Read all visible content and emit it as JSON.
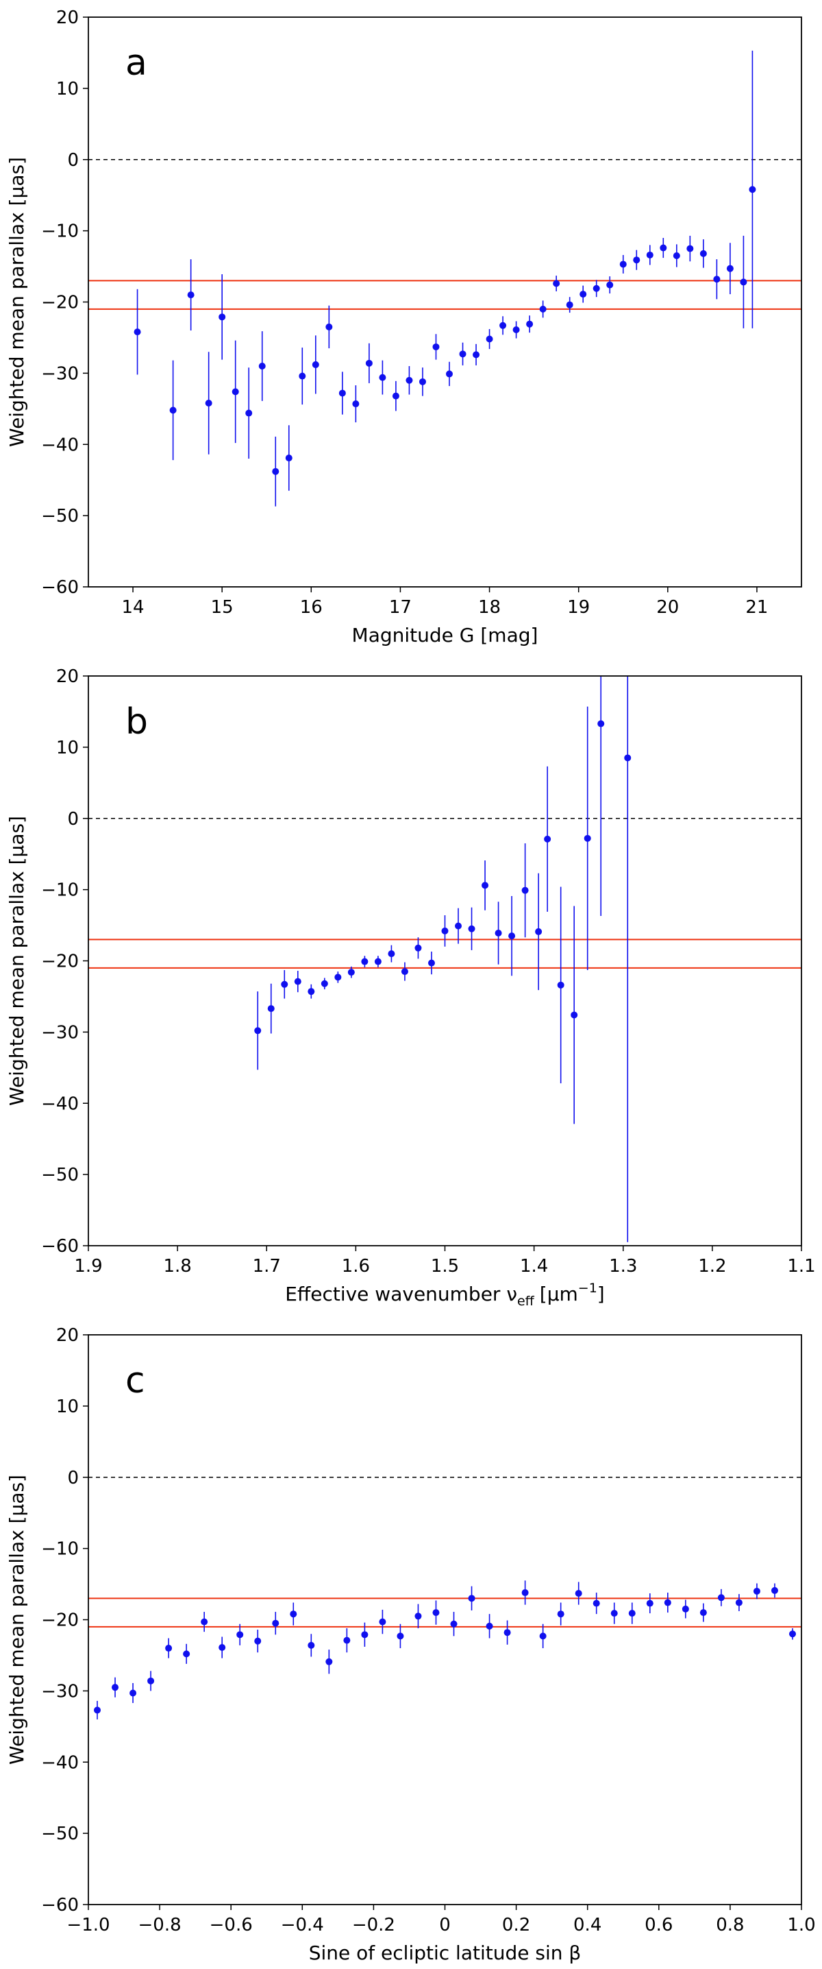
{
  "chart_data": [
    {
      "type": "scatter",
      "panel_label": "a",
      "xlabel": "Magnitude G [mag]",
      "ylabel": "Weighted mean parallax [μas]",
      "xlim": [
        13.5,
        21.5
      ],
      "ylim": [
        -60,
        20
      ],
      "xticks": [
        14,
        15,
        16,
        17,
        18,
        19,
        20,
        21
      ],
      "xtick_labels": [
        "14",
        "15",
        "16",
        "17",
        "18",
        "19",
        "20",
        "21"
      ],
      "yticks": [
        20,
        10,
        0,
        -10,
        -20,
        -30,
        -40,
        -50,
        -60
      ],
      "ytick_labels": [
        "20",
        "10",
        "0",
        "−10",
        "−20",
        "−30",
        "−40",
        "−50",
        "−60"
      ],
      "reference_lines": {
        "zero_dashed": 0,
        "red_lines": [
          -17,
          -21
        ]
      },
      "series": [
        {
          "name": "weighted mean parallax",
          "x": [
            14.05,
            14.45,
            14.65,
            14.85,
            15.0,
            15.15,
            15.3,
            15.45,
            15.6,
            15.75,
            15.9,
            16.05,
            16.2,
            16.35,
            16.5,
            16.65,
            16.8,
            16.95,
            17.1,
            17.25,
            17.4,
            17.55,
            17.7,
            17.85,
            18.0,
            18.15,
            18.3,
            18.45,
            18.6,
            18.75,
            18.9,
            19.05,
            19.2,
            19.35,
            19.5,
            19.65,
            19.8,
            19.95,
            20.1,
            20.25,
            20.4,
            20.55,
            20.7,
            20.85,
            20.95
          ],
          "y": [
            -24.2,
            -35.2,
            -19.0,
            -34.2,
            -22.1,
            -32.6,
            -35.6,
            -29.0,
            -43.8,
            -41.9,
            -30.4,
            -28.8,
            -23.5,
            -32.8,
            -34.3,
            -28.6,
            -30.6,
            -33.2,
            -31.0,
            -31.2,
            -26.3,
            -30.1,
            -27.3,
            -27.4,
            -25.2,
            -23.3,
            -23.9,
            -23.1,
            -21.0,
            -17.4,
            -20.4,
            -18.9,
            -18.1,
            -17.6,
            -14.7,
            -14.1,
            -13.4,
            -12.4,
            -13.5,
            -12.5,
            -13.2,
            -16.8,
            -15.3,
            -17.2,
            -4.2
          ],
          "err": [
            6.0,
            7.0,
            5.0,
            7.2,
            6.0,
            7.2,
            6.4,
            4.9,
            4.9,
            4.6,
            4.0,
            4.1,
            3.0,
            3.0,
            2.6,
            2.8,
            2.4,
            2.1,
            2.0,
            2.0,
            1.8,
            1.7,
            1.6,
            1.5,
            1.4,
            1.3,
            1.2,
            1.2,
            1.2,
            1.1,
            1.1,
            1.2,
            1.2,
            1.2,
            1.3,
            1.4,
            1.4,
            1.4,
            1.6,
            1.8,
            2.0,
            2.8,
            3.6,
            6.5,
            19.5
          ]
        }
      ]
    },
    {
      "type": "scatter",
      "panel_label": "b",
      "xlabel": "Effective wavenumber ν",
      "xlabel_subscript": "eff",
      "xlabel_unit_open": "[μm",
      "xlabel_unit_sup": "−1",
      "xlabel_unit_close": "]",
      "ylabel": "Weighted mean parallax [μas]",
      "xlim": [
        1.9,
        1.1
      ],
      "ylim": [
        -60,
        20
      ],
      "xticks": [
        1.9,
        1.8,
        1.7,
        1.6,
        1.5,
        1.4,
        1.3,
        1.2,
        1.1
      ],
      "xtick_labels": [
        "1.9",
        "1.8",
        "1.7",
        "1.6",
        "1.5",
        "1.4",
        "1.3",
        "1.2",
        "1.1"
      ],
      "yticks": [
        20,
        10,
        0,
        -10,
        -20,
        -30,
        -40,
        -50,
        -60
      ],
      "ytick_labels": [
        "20",
        "10",
        "0",
        "−10",
        "−20",
        "−30",
        "−40",
        "−50",
        "−60"
      ],
      "reference_lines": {
        "zero_dashed": 0,
        "red_lines": [
          -17,
          -21
        ]
      },
      "series": [
        {
          "name": "weighted mean parallax",
          "x": [
            1.71,
            1.695,
            1.68,
            1.665,
            1.65,
            1.635,
            1.62,
            1.605,
            1.59,
            1.575,
            1.56,
            1.545,
            1.53,
            1.515,
            1.5,
            1.485,
            1.47,
            1.455,
            1.44,
            1.425,
            1.41,
            1.395,
            1.385,
            1.37,
            1.355,
            1.34,
            1.325,
            1.295
          ],
          "y": [
            -29.8,
            -26.7,
            -23.3,
            -22.9,
            -24.3,
            -23.2,
            -22.3,
            -21.6,
            -20.1,
            -20.1,
            -19.0,
            -21.5,
            -18.2,
            -20.3,
            -15.8,
            -15.1,
            -15.5,
            -9.4,
            -16.1,
            -16.5,
            -10.1,
            -15.9,
            -2.9,
            -23.4,
            -27.6,
            -2.8,
            13.3,
            8.5
          ],
          "err": [
            5.5,
            3.5,
            2.0,
            1.5,
            1.0,
            0.8,
            0.8,
            0.8,
            0.8,
            0.8,
            1.2,
            1.3,
            1.5,
            1.6,
            2.2,
            2.5,
            3.0,
            3.5,
            4.4,
            5.6,
            6.6,
            8.2,
            10.2,
            13.8,
            15.3,
            18.5,
            27.0,
            68.0
          ]
        }
      ]
    },
    {
      "type": "scatter",
      "panel_label": "c",
      "xlabel": "Sine of ecliptic latitude sin β",
      "ylabel": "Weighted mean parallax [μas]",
      "xlim": [
        -1.0,
        1.0
      ],
      "ylim": [
        -60,
        20
      ],
      "xticks": [
        -1.0,
        -0.8,
        -0.6,
        -0.4,
        -0.2,
        0,
        0.2,
        0.4,
        0.6,
        0.8,
        1.0
      ],
      "xtick_labels": [
        "−1.0",
        "−0.8",
        "−0.6",
        "−0.4",
        "−0.2",
        "0",
        "0.2",
        "0.4",
        "0.6",
        "0.8",
        "1.0"
      ],
      "yticks": [
        20,
        10,
        0,
        -10,
        -20,
        -30,
        -40,
        -50,
        -60
      ],
      "ytick_labels": [
        "20",
        "10",
        "0",
        "−10",
        "−20",
        "−30",
        "−40",
        "−50",
        "−60"
      ],
      "reference_lines": {
        "zero_dashed": 0,
        "red_lines": [
          -17,
          -21
        ]
      },
      "series": [
        {
          "name": "weighted mean parallax",
          "x": [
            -0.975,
            -0.925,
            -0.875,
            -0.825,
            -0.775,
            -0.725,
            -0.675,
            -0.625,
            -0.575,
            -0.525,
            -0.475,
            -0.425,
            -0.375,
            -0.325,
            -0.275,
            -0.225,
            -0.175,
            -0.125,
            -0.075,
            -0.025,
            0.025,
            0.075,
            0.125,
            0.175,
            0.225,
            0.275,
            0.325,
            0.375,
            0.425,
            0.475,
            0.525,
            0.575,
            0.625,
            0.675,
            0.725,
            0.775,
            0.825,
            0.875,
            0.925,
            0.975
          ],
          "y": [
            -32.7,
            -29.5,
            -30.3,
            -28.6,
            -24.0,
            -24.8,
            -20.3,
            -23.9,
            -22.1,
            -23.0,
            -20.5,
            -19.2,
            -23.6,
            -25.9,
            -22.9,
            -22.1,
            -20.3,
            -22.3,
            -19.5,
            -19.0,
            -20.6,
            -17.0,
            -20.9,
            -21.8,
            -16.2,
            -22.3,
            -19.2,
            -16.3,
            -17.7,
            -19.1,
            -19.1,
            -17.7,
            -17.6,
            -18.5,
            -19.0,
            -16.9,
            -17.6,
            -16.0,
            -15.9,
            -22.0
          ],
          "err": [
            1.3,
            1.4,
            1.4,
            1.4,
            1.4,
            1.4,
            1.4,
            1.5,
            1.5,
            1.6,
            1.6,
            1.6,
            1.6,
            1.7,
            1.7,
            1.7,
            1.7,
            1.7,
            1.7,
            1.7,
            1.7,
            1.7,
            1.7,
            1.7,
            1.7,
            1.7,
            1.6,
            1.6,
            1.5,
            1.5,
            1.5,
            1.4,
            1.4,
            1.3,
            1.3,
            1.2,
            1.2,
            1.1,
            1.0,
            0.8
          ]
        }
      ]
    }
  ]
}
